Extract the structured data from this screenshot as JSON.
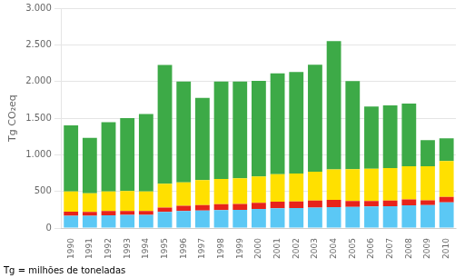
{
  "chart_data": {
    "type": "bar",
    "stacked": true,
    "ylabel": "Tg CO₂eq",
    "footnote": "Tg = milhões de toneladas",
    "categories": [
      "1990",
      "1991",
      "1992",
      "1993",
      "1994",
      "1995",
      "1996",
      "1997",
      "1998",
      "1999",
      "2000",
      "2001",
      "2002",
      "2003",
      "2004",
      "2005",
      "2006",
      "2007",
      "2008",
      "2009",
      "2010"
    ],
    "series": [
      {
        "color": "#5BC8F5",
        "values": [
          170,
          170,
          175,
          180,
          180,
          220,
          235,
          240,
          245,
          250,
          260,
          270,
          275,
          280,
          285,
          290,
          295,
          300,
          310,
          315,
          350
        ]
      },
      {
        "color": "#E8231A",
        "values": [
          55,
          50,
          60,
          55,
          55,
          60,
          70,
          75,
          80,
          80,
          85,
          90,
          90,
          95,
          100,
          80,
          75,
          75,
          80,
          65,
          75
        ]
      },
      {
        "color": "#FFE000",
        "values": [
          275,
          255,
          265,
          270,
          265,
          325,
          320,
          340,
          345,
          350,
          360,
          375,
          380,
          395,
          415,
          435,
          440,
          445,
          455,
          465,
          490
        ]
      },
      {
        "color": "#3DAA47",
        "values": [
          900,
          755,
          945,
          995,
          1055,
          1620,
          1375,
          1120,
          1330,
          1320,
          1305,
          1375,
          1385,
          1460,
          1750,
          1200,
          850,
          855,
          855,
          355,
          310
        ]
      }
    ],
    "ylim": [
      0,
      3000
    ],
    "yticks": [
      0,
      500,
      {
        "value": 1000,
        "label": "1.000"
      },
      {
        "value": 1500,
        "label": "1.500"
      },
      {
        "value": 2000,
        "label": "2.000"
      },
      {
        "value": 2500,
        "label": "2.500"
      },
      {
        "value": 3000,
        "label": "3.000"
      }
    ],
    "grid": true
  }
}
